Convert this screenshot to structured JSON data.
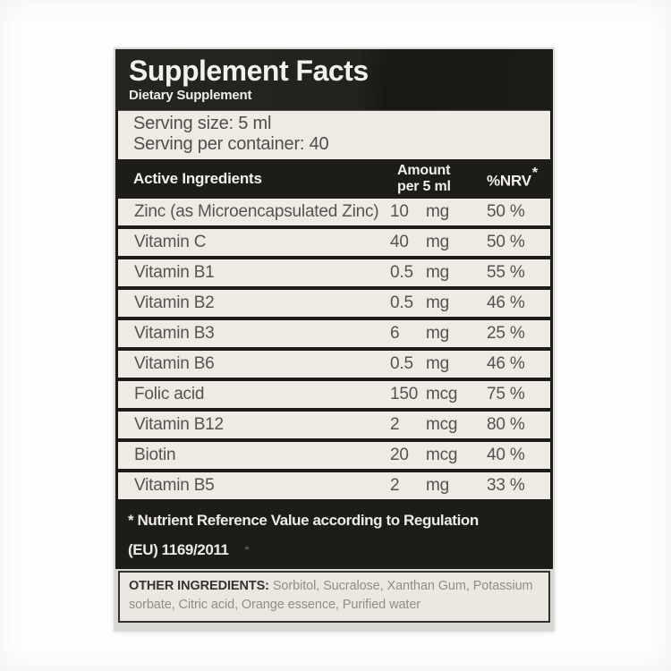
{
  "label": {
    "title": "Supplement Facts",
    "subtitle": "Dietary Supplement",
    "serving": {
      "size_line": "Serving size: 5 ml",
      "container_line": "Serving per container: 40"
    },
    "table": {
      "header": {
        "ingredients": "Active Ingredients",
        "amount_line1": "Amount",
        "amount_line2": "per 5 ml",
        "nrv": "%NRV",
        "nrv_mark": "*"
      },
      "rows": [
        {
          "name": "Zinc (as Microencapsulated Zinc)",
          "amount": "10",
          "unit": "mg",
          "nrv": "50 %"
        },
        {
          "name": "Vitamin C",
          "amount": "40",
          "unit": "mg",
          "nrv": "50 %"
        },
        {
          "name": "Vitamin B1",
          "amount": "0.5",
          "unit": "mg",
          "nrv": "55 %"
        },
        {
          "name": "Vitamin B2",
          "amount": "0.5",
          "unit": "mg",
          "nrv": "46 %"
        },
        {
          "name": "Vitamin B3",
          "amount": "6",
          "unit": "mg",
          "nrv": "25 %"
        },
        {
          "name": "Vitamin B6",
          "amount": "0.5",
          "unit": "mg",
          "nrv": "46 %"
        },
        {
          "name": "Folic acid",
          "amount": "150",
          "unit": "mcg",
          "nrv": "75 %"
        },
        {
          "name": "Vitamin B12",
          "amount": "2",
          "unit": "mcg",
          "nrv": "80 %"
        },
        {
          "name": "Biotin",
          "amount": "20",
          "unit": "mcg",
          "nrv": "40 %"
        },
        {
          "name": "Vitamin B5",
          "amount": "2",
          "unit": "mg",
          "nrv": "33 %"
        }
      ]
    },
    "footnote": {
      "line1": "* Nutrient Reference Value according to Regulation",
      "line2": "(EU) 1169/2011",
      "mark": "°"
    },
    "other_ingredients": {
      "label": "OTHER INGREDIENTS:",
      "text": "Sorbitol, Sucralose, Xanthan Gum, Potassium sorbate, Citric acid, Orange essence, Purified water"
    },
    "colors": {
      "panel_black": "#1e1c18",
      "row_background": "#edebe4",
      "paper_edge": "#dcdad4",
      "text_dark": "#55534e",
      "text_light": "#f3f1eb",
      "muted_gray": "#908e87"
    }
  }
}
